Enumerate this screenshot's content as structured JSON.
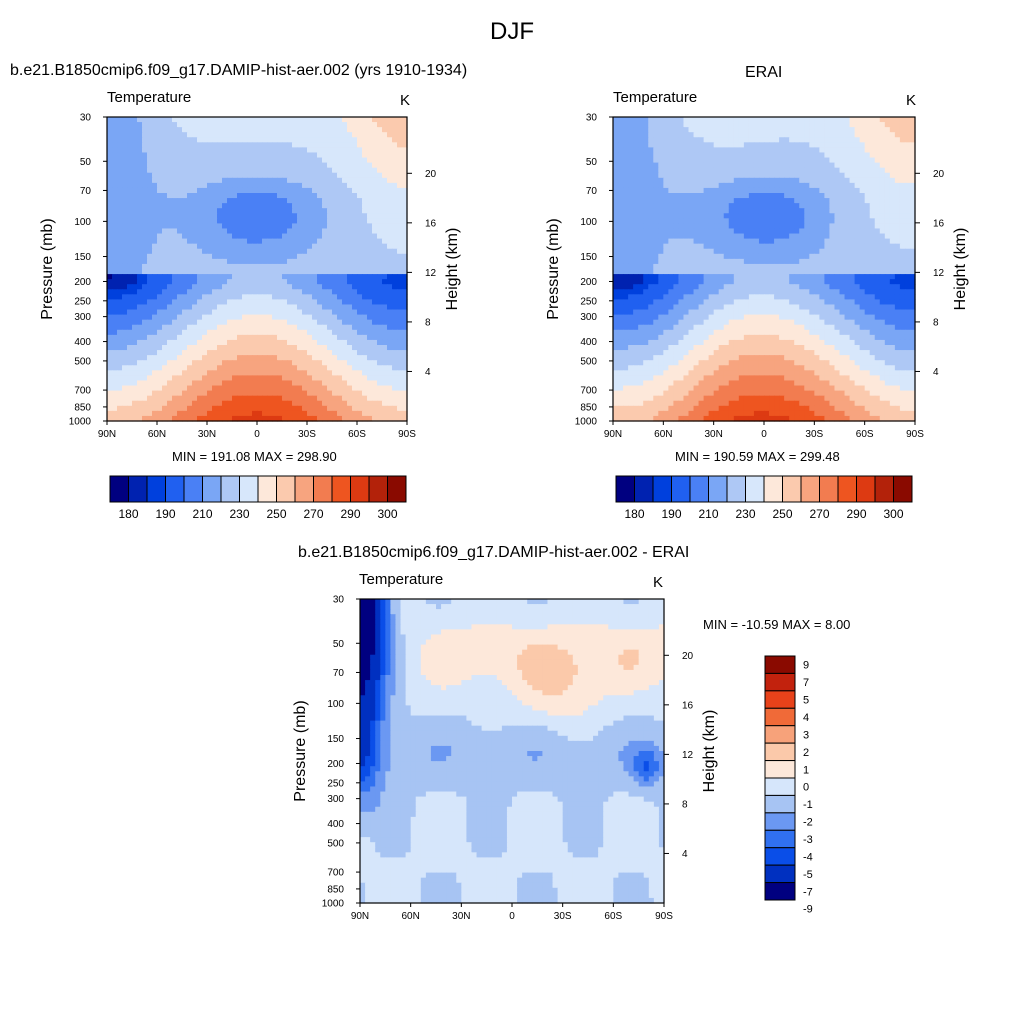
{
  "title": "DJF",
  "colors": {
    "sequential": [
      "#000080",
      "#0022b0",
      "#0040dd",
      "#2060f0",
      "#4a80f5",
      "#7aa6f5",
      "#aec8f5",
      "#d7e7fb",
      "#fde8da",
      "#fbcaae",
      "#f7a47f",
      "#f27c50",
      "#ee5520",
      "#dd3a12",
      "#b3220a",
      "#8a0a00"
    ],
    "difference": [
      "#000080",
      "#0030c0",
      "#0a4ee8",
      "#3070f0",
      "#6b98f2",
      "#a7c4f3",
      "#d6e6fb",
      "#fde8da",
      "#fbc9aa",
      "#f7a27a",
      "#f06a38",
      "#e8421a",
      "#c2220d",
      "#8a0a00"
    ]
  },
  "chart_data": [
    {
      "type": "heatmap",
      "title": "b.e21.B1850cmip6.f09_g17.DAMIP-hist-aer.002 (yrs 1910-1934)",
      "variable": "Temperature",
      "units": "K",
      "ylabel": "Pressure (mb)",
      "y2label": "Height (km)",
      "x_ticks": [
        "90N",
        "60N",
        "30N",
        "0",
        "30S",
        "60S",
        "90S"
      ],
      "y_ticks": [
        "30",
        "50",
        "70",
        "100",
        "150",
        "200",
        "250",
        "300",
        "400",
        "500",
        "700",
        "850",
        "1000"
      ],
      "y2_ticks": [
        "20",
        "16",
        "12",
        "8",
        "4"
      ],
      "ylim": [
        30,
        1000
      ],
      "y_log": true,
      "stats": "MIN = 191.08  MAX = 298.90",
      "min": 191.08,
      "max": 298.9,
      "colorbar_labels": [
        "180",
        "190",
        "210",
        "230",
        "250",
        "270",
        "290",
        "300"
      ],
      "colorbar_orientation": "horizontal"
    },
    {
      "type": "heatmap",
      "title": "ERAI",
      "variable": "Temperature",
      "units": "K",
      "ylabel": "Pressure (mb)",
      "y2label": "Height (km)",
      "x_ticks": [
        "90N",
        "60N",
        "30N",
        "0",
        "30S",
        "60S",
        "90S"
      ],
      "y_ticks": [
        "30",
        "50",
        "70",
        "100",
        "150",
        "200",
        "250",
        "300",
        "400",
        "500",
        "700",
        "850",
        "1000"
      ],
      "y2_ticks": [
        "20",
        "16",
        "12",
        "8",
        "4"
      ],
      "ylim": [
        30,
        1000
      ],
      "y_log": true,
      "stats": "MIN = 190.59  MAX = 299.48",
      "min": 190.59,
      "max": 299.48,
      "colorbar_labels": [
        "180",
        "190",
        "210",
        "230",
        "250",
        "270",
        "290",
        "300"
      ],
      "colorbar_orientation": "horizontal"
    },
    {
      "type": "heatmap",
      "title": "b.e21.B1850cmip6.f09_g17.DAMIP-hist-aer.002 - ERAI",
      "variable": "Temperature",
      "units": "K",
      "ylabel": "Pressure (mb)",
      "y2label": "Height (km)",
      "x_ticks": [
        "90N",
        "60N",
        "30N",
        "0",
        "30S",
        "60S",
        "90S"
      ],
      "y_ticks": [
        "30",
        "50",
        "70",
        "100",
        "150",
        "200",
        "250",
        "300",
        "400",
        "500",
        "700",
        "850",
        "1000"
      ],
      "y2_ticks": [
        "20",
        "16",
        "12",
        "8",
        "4"
      ],
      "ylim": [
        30,
        1000
      ],
      "y_log": true,
      "stats": "MIN = -10.59  MAX =   8.00",
      "min": -10.59,
      "max": 8.0,
      "colorbar_labels": [
        "9",
        "7",
        "5",
        "4",
        "3",
        "2",
        "1",
        "0",
        "-1",
        "-2",
        "-3",
        "-4",
        "-5",
        "-7",
        "-9"
      ],
      "colorbar_orientation": "vertical"
    }
  ]
}
